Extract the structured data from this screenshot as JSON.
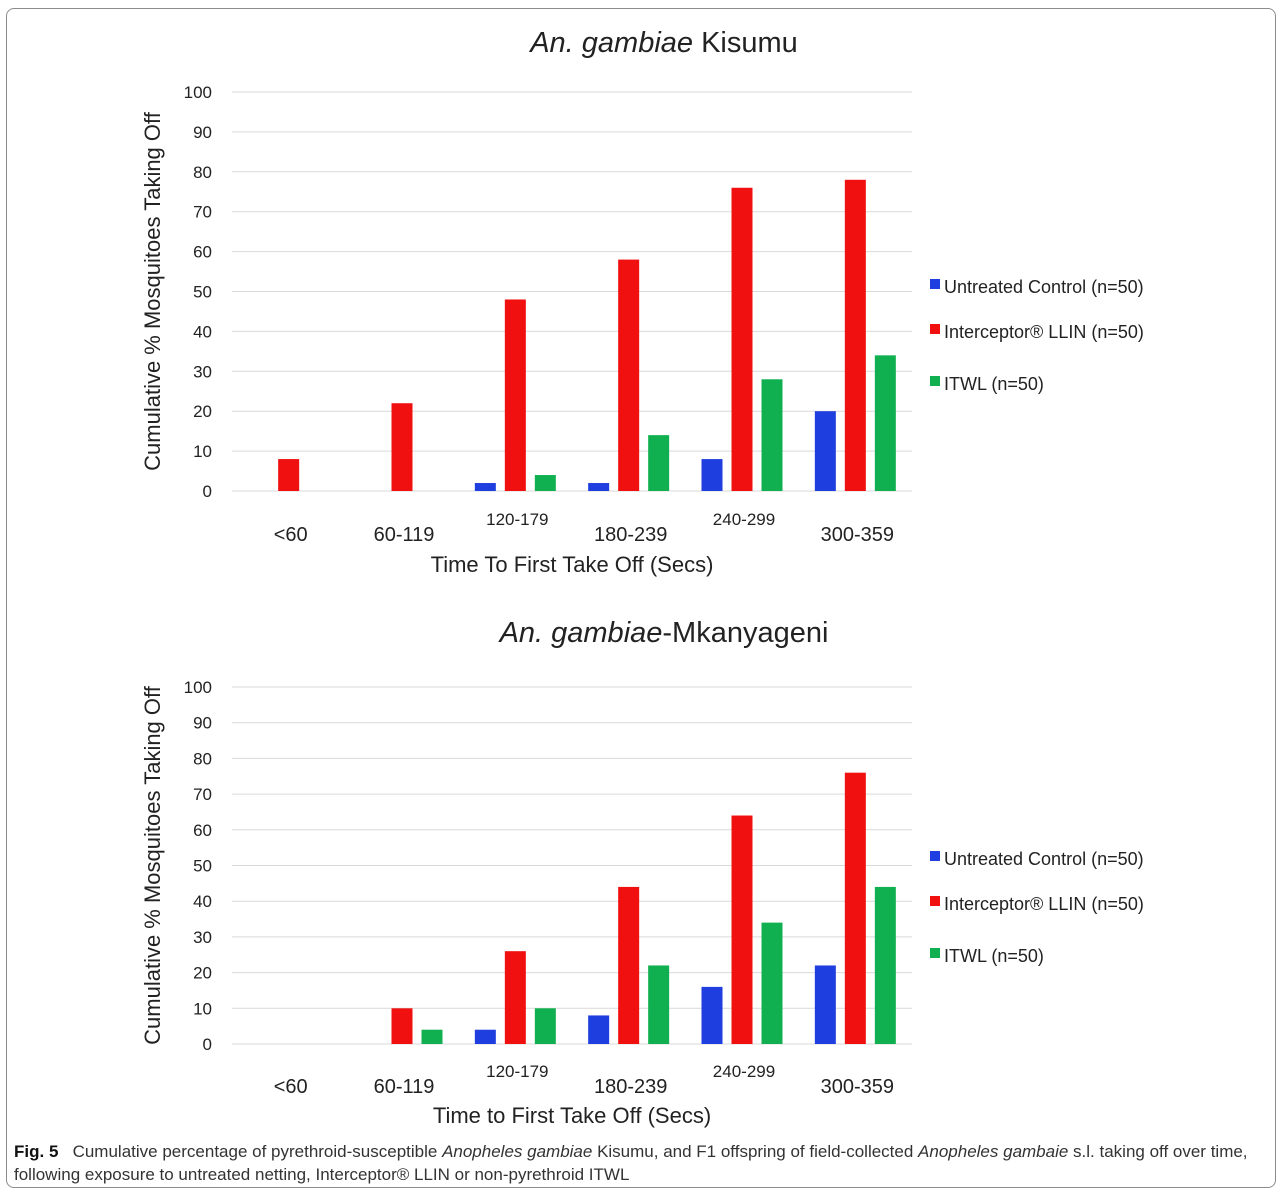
{
  "chart_data": [
    {
      "type": "bar",
      "title_italic": "An. gambiae",
      "title_rest": " Kisumu",
      "xlabel": "Time To First Take Off (Secs)",
      "ylabel": "Cumulative % Mosquitoes Taking Off",
      "ylim": [
        0,
        100
      ],
      "yticks": [
        0,
        10,
        20,
        30,
        40,
        50,
        60,
        70,
        80,
        90,
        100
      ],
      "grid": true,
      "legend_position": "right",
      "categories": [
        "<60",
        "60-119",
        "120-179",
        "180-239",
        "240-299",
        "300-359"
      ],
      "series": [
        {
          "name": "Untreated Control (n=50)",
          "color": "#1f3ee0",
          "values": [
            0,
            0,
            2,
            2,
            8,
            20
          ]
        },
        {
          "name": "Interceptor® LLIN (n=50)",
          "color": "#f01010",
          "values": [
            8,
            22,
            48,
            58,
            76,
            78
          ]
        },
        {
          "name": "ITWL (n=50)",
          "color": "#10b050",
          "values": [
            0,
            0,
            4,
            14,
            28,
            34
          ]
        }
      ]
    },
    {
      "type": "bar",
      "title_italic": "An. gambiae",
      "title_rest": "-Mkanyageni",
      "xlabel": "Time to First Take Off (Secs)",
      "ylabel": "Cumulative % Mosquitoes Taking Off",
      "ylim": [
        0,
        100
      ],
      "yticks": [
        0,
        10,
        20,
        30,
        40,
        50,
        60,
        70,
        80,
        90,
        100
      ],
      "grid": true,
      "legend_position": "right",
      "categories": [
        "<60",
        "60-119",
        "120-179",
        "180-239",
        "240-299",
        "300-359"
      ],
      "series": [
        {
          "name": "Untreated Control (n=50)",
          "color": "#1f3ee0",
          "values": [
            0,
            0,
            4,
            8,
            16,
            22
          ]
        },
        {
          "name": "Interceptor® LLIN (n=50)",
          "color": "#f01010",
          "values": [
            0,
            10,
            26,
            44,
            64,
            76
          ]
        },
        {
          "name": "ITWL (n=50)",
          "color": "#10b050",
          "values": [
            0,
            4,
            10,
            22,
            34,
            44
          ]
        }
      ]
    }
  ],
  "caption": {
    "label": "Fig. 5",
    "segments": [
      {
        "text": "Cumulative percentage of pyrethroid-susceptible ",
        "italic": false
      },
      {
        "text": "Anopheles gambiae",
        "italic": true
      },
      {
        "text": " Kisumu, and F1 offspring of field-collected ",
        "italic": false
      },
      {
        "text": "Anopheles gambaie",
        "italic": true
      },
      {
        "text": " s.l. taking off over time, following exposure to untreated netting, Interceptor® LLIN or non-pyrethroid ITWL",
        "italic": false
      }
    ]
  }
}
